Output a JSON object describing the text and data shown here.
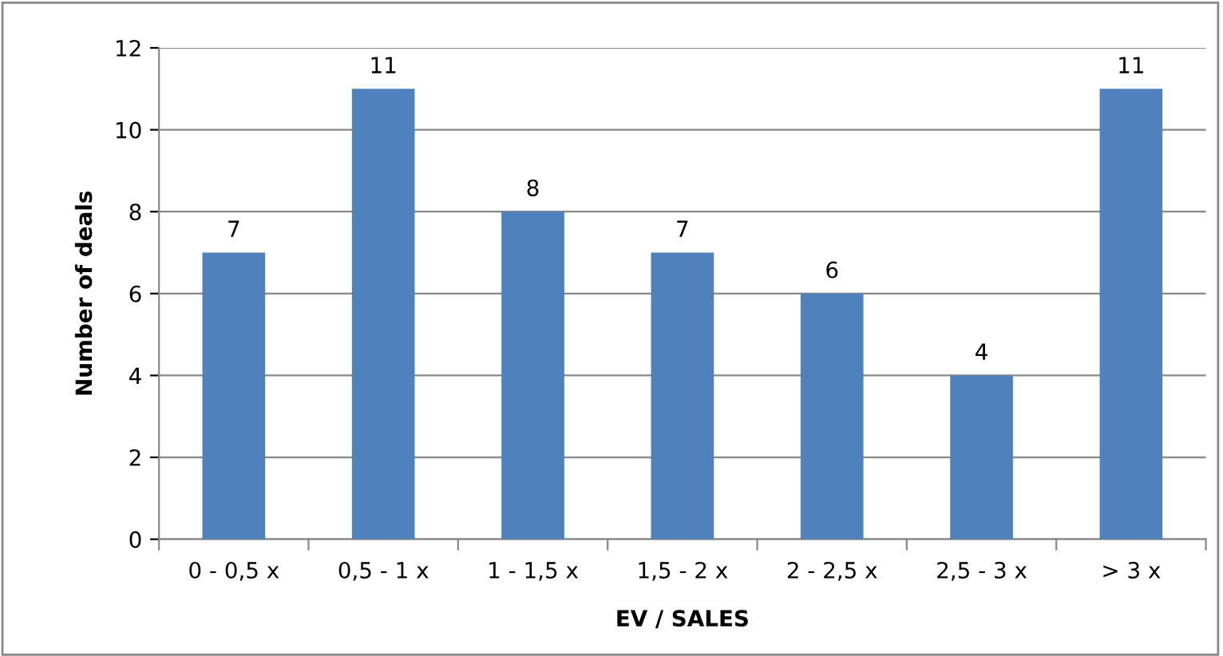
{
  "chart_data": {
    "type": "bar",
    "xlabel": "EV / SALES",
    "ylabel": "Number of deals",
    "categories": [
      "0 - 0,5 x",
      "0,5 - 1 x",
      "1 - 1,5 x",
      "1,5 - 2 x",
      "2 - 2,5 x",
      "2,5 - 3 x",
      "> 3 x"
    ],
    "values": [
      7,
      11,
      8,
      7,
      6,
      4,
      11
    ],
    "color": "#4f81bd",
    "ylim": [
      0,
      12
    ],
    "yticks": [
      0,
      2,
      4,
      6,
      8,
      10,
      12
    ],
    "grid": "y",
    "data_labels": true,
    "legend": false
  }
}
